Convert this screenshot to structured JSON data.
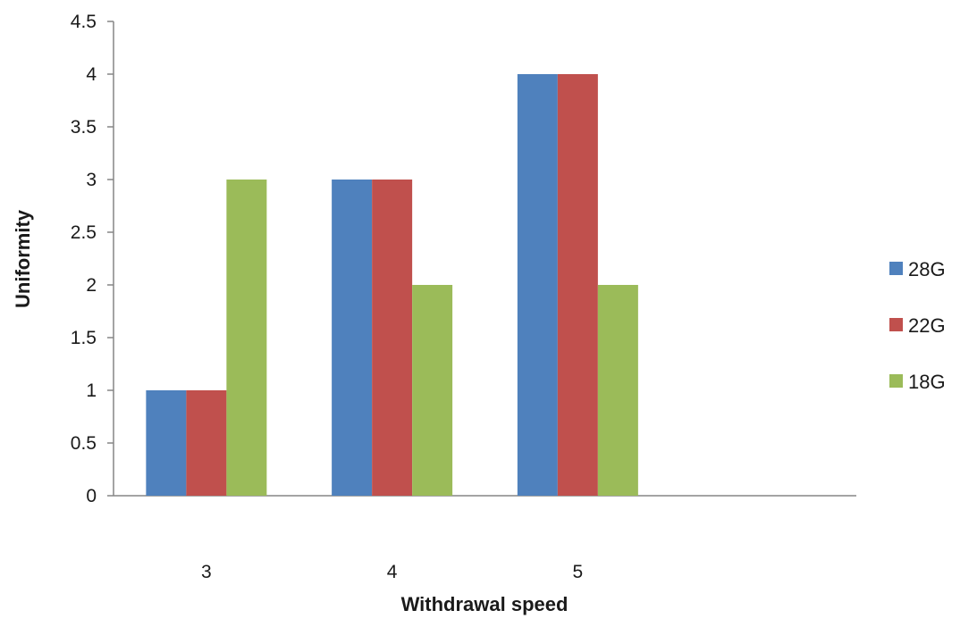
{
  "chart_data": {
    "type": "bar",
    "title": "",
    "xlabel": "Withdrawal speed",
    "ylabel": "Uniformity",
    "categories": [
      "3",
      "4",
      "5",
      ""
    ],
    "series": [
      {
        "name": "28G",
        "color": "#4f81bd",
        "values": [
          1,
          3,
          4,
          null
        ]
      },
      {
        "name": "22G",
        "color": "#c0504d",
        "values": [
          1,
          3,
          4,
          null
        ]
      },
      {
        "name": "18G",
        "color": "#9bbb59",
        "values": [
          3,
          2,
          2,
          null
        ]
      }
    ],
    "ylim": [
      0,
      4.5
    ],
    "yticks": [
      "0",
      "0.5",
      "1",
      "1.5",
      "2",
      "2.5",
      "3",
      "3.5",
      "4",
      "4.5"
    ],
    "grid": false,
    "legend_position": "right"
  }
}
